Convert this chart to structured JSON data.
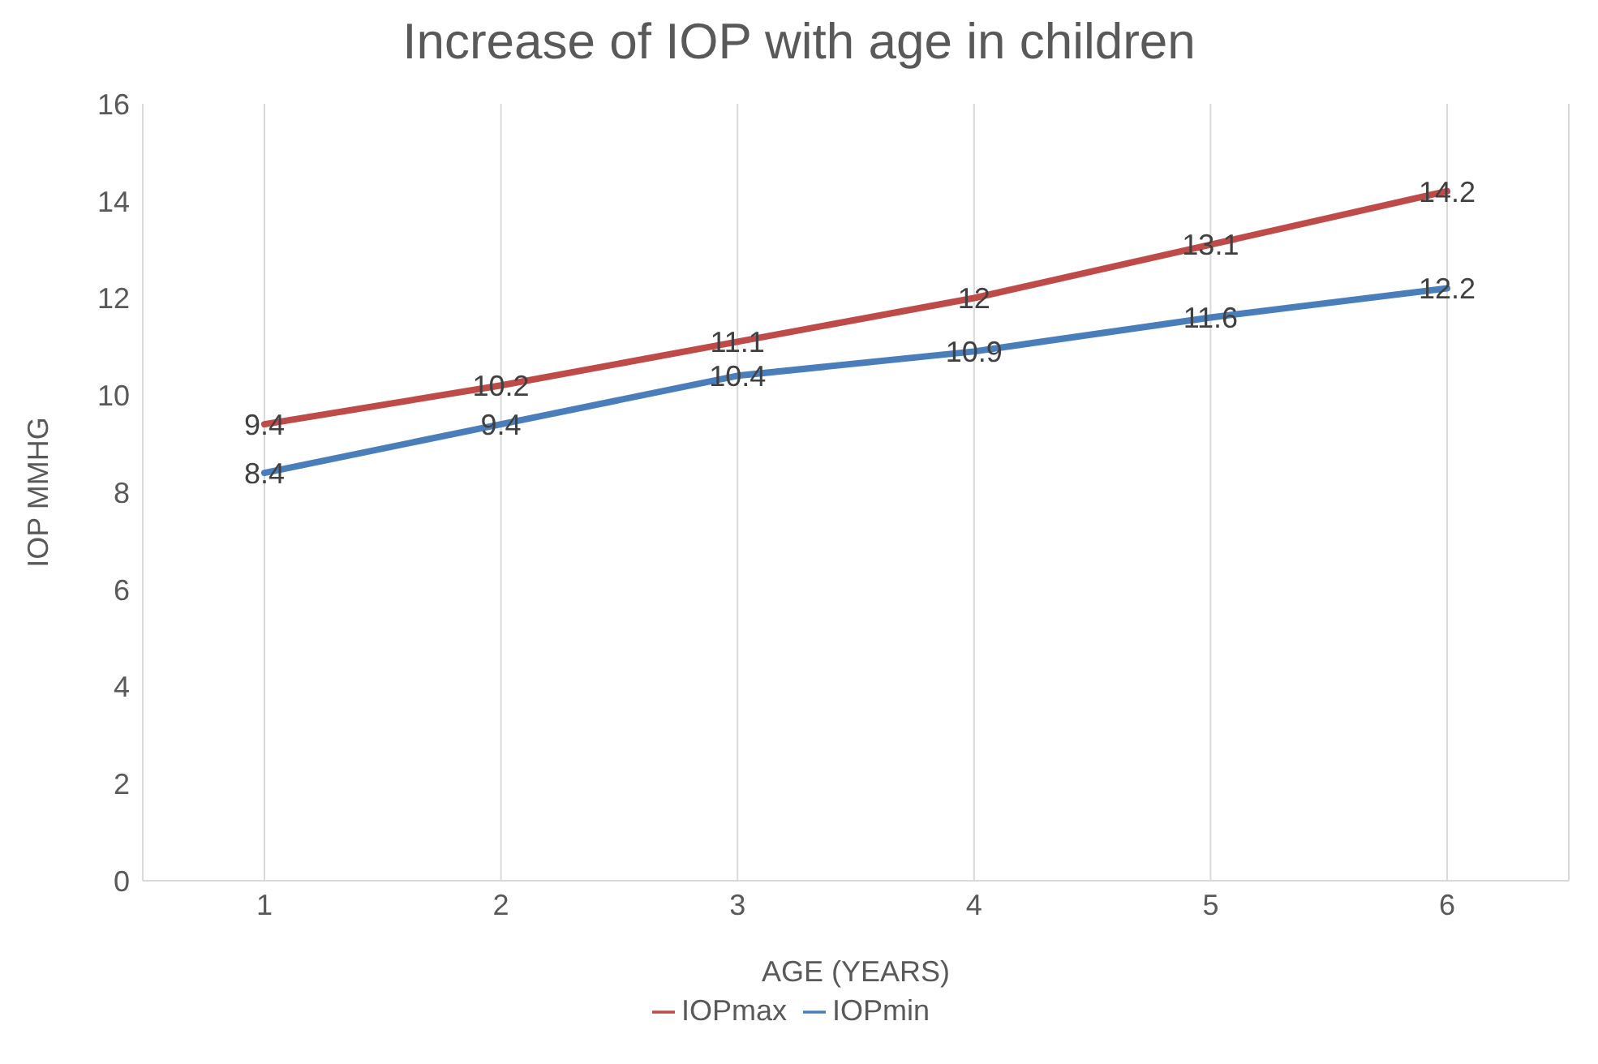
{
  "chart_data": {
    "type": "line",
    "title": "Increase of IOP with age in children",
    "xlabel": "AGE  (YEARS)",
    "ylabel": "IOP MMHG",
    "categories": [
      "1",
      "2",
      "3",
      "4",
      "5",
      "6"
    ],
    "series": [
      {
        "name": "IOPmin",
        "color": "#4a7ebb",
        "values": [
          8.4,
          9.4,
          10.4,
          10.9,
          11.6,
          12.2
        ]
      },
      {
        "name": "IOPmax",
        "color": "#be4b48",
        "values": [
          9.4,
          10.2,
          11.1,
          12,
          13.1,
          14.2
        ]
      }
    ],
    "ylim": [
      0,
      16
    ],
    "yticks": [
      0,
      2,
      4,
      6,
      8,
      10,
      12,
      14,
      16
    ],
    "grid": "x",
    "legend": "bottom",
    "data_labels": true,
    "marker": "none",
    "line_style": "solid"
  }
}
